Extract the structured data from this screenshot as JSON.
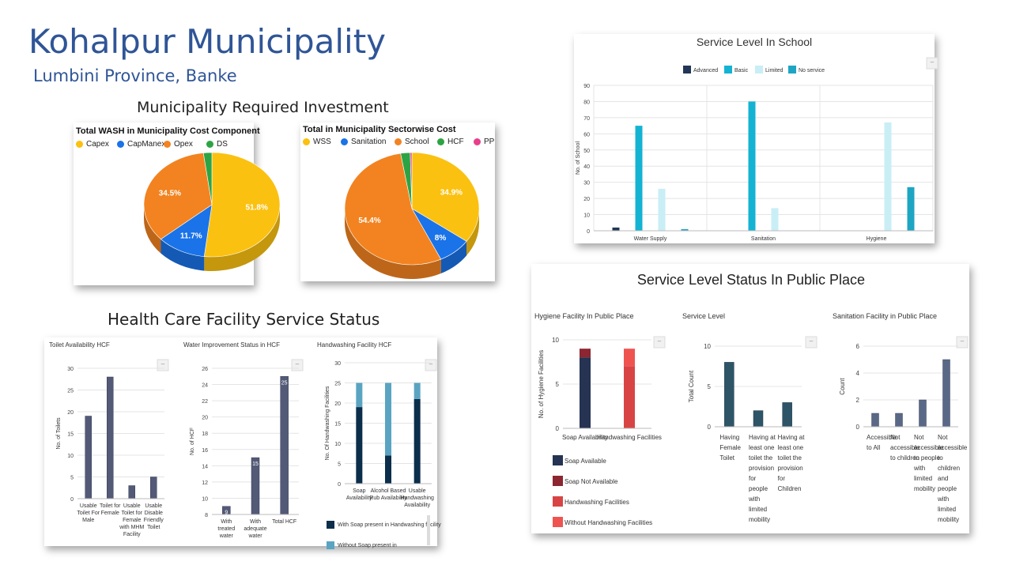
{
  "header": {
    "title": "Kohalpur Municipality",
    "subtitle": "Lumbini Province, Banke",
    "investment_title": "Municipality Required Investment",
    "hcf_title": "Health Care Facility Service Status"
  },
  "chart_data": [
    {
      "id": "wash_cost",
      "type": "pie",
      "title": "Total WASH in Municipality Cost Component",
      "labels": [
        "Capex",
        "CapManex",
        "Opex",
        "DS"
      ],
      "values": [
        51.8,
        11.7,
        34.5,
        2.0
      ],
      "data_labels": [
        "51.8%",
        "11.7%",
        "34.5%",
        ""
      ],
      "colors": [
        "#fbc111",
        "#1a73e8",
        "#f28320",
        "#2da444"
      ]
    },
    {
      "id": "sector_cost",
      "type": "pie",
      "title": "Total in Municipality Sectorwise Cost",
      "labels": [
        "WSS",
        "Sanitation",
        "School",
        "HCF",
        "PP"
      ],
      "values": [
        34.9,
        8.0,
        54.4,
        2.3,
        0.4
      ],
      "data_labels": [
        "34.9%",
        "8%",
        "54.4%",
        "",
        ""
      ],
      "colors": [
        "#fbc111",
        "#1a73e8",
        "#f28320",
        "#2da444",
        "#e83e8c"
      ]
    },
    {
      "id": "school",
      "type": "bar",
      "title": "Service Level In School",
      "categories": [
        "Water Supply",
        "Sanitation",
        "Hygiene"
      ],
      "series": [
        {
          "name": "Advanced",
          "values": [
            2,
            0,
            0
          ],
          "color": "#243657"
        },
        {
          "name": "Basic",
          "values": [
            65,
            80,
            0
          ],
          "color": "#14b3d3"
        },
        {
          "name": "Limited",
          "values": [
            26,
            14,
            67
          ],
          "color": "#c9eef6"
        },
        {
          "name": "No service",
          "values": [
            1,
            0,
            27
          ],
          "color": "#1ea5c3"
        }
      ],
      "ylabel": "No. of School",
      "ylim": [
        0,
        90
      ],
      "yticks": [
        "0",
        "10",
        "20",
        "30",
        "40",
        "50",
        "60",
        "70",
        "80",
        "90"
      ]
    },
    {
      "id": "public_place",
      "panel_title": "Service Level Status In Public Place",
      "charts": [
        {
          "id": "hygiene_pp",
          "type": "bar",
          "stacked": true,
          "title": "Hygiene Facility In Public Place",
          "categories": [
            "Soap Availability",
            "Handwashing Facilities"
          ],
          "series": [
            {
              "name": "Soap Available",
              "values": [
                8,
                0
              ],
              "color": "#263352"
            },
            {
              "name": "Soap Not Available",
              "values": [
                1,
                0
              ],
              "color": "#8c2631"
            },
            {
              "name": "Handwashing Facilities",
              "values": [
                0,
                7
              ],
              "color": "#d84444"
            },
            {
              "name": "Without Handwashing Facilities",
              "values": [
                0,
                2
              ],
              "color": "#ef5350"
            }
          ],
          "ylabel": "No. of Hygiene Facilities",
          "ylim": [
            0,
            10
          ],
          "yticks": [
            "0",
            "5",
            "10"
          ]
        },
        {
          "id": "service_level_pp",
          "type": "bar",
          "title": "Service Level",
          "categories": [
            [
              "Having",
              "Female",
              "Toilet"
            ],
            [
              "Having at",
              "least one",
              "toilet the",
              "provision",
              "for",
              "people",
              "with",
              "limited",
              "mobility"
            ],
            [
              "Having at",
              "least one",
              "toilet the",
              "provision",
              "for",
              "Children"
            ]
          ],
          "values": [
            8,
            2,
            3
          ],
          "color": "#2e5468",
          "ylabel": "Total Count",
          "ylim": [
            0,
            10
          ],
          "yticks": [
            "0",
            "5",
            "10"
          ]
        },
        {
          "id": "sanitation_pp",
          "type": "bar",
          "title": "Sanitation Facility in Public Place",
          "categories": [
            [
              "Accessible",
              "to All"
            ],
            [
              "Not",
              "accessible",
              "to children"
            ],
            [
              "Not",
              "accessible",
              "to people",
              "with",
              "limited",
              "mobility"
            ],
            [
              "Not",
              "accessible",
              "to",
              "children",
              "and",
              "people",
              "with",
              "limited",
              "mobility"
            ]
          ],
          "values": [
            1,
            1,
            2,
            5
          ],
          "color": "#5a6888",
          "ylabel": "Count",
          "ylim": [
            0,
            6
          ],
          "yticks": [
            "0",
            "2",
            "4",
            "6"
          ]
        }
      ]
    },
    {
      "id": "hcf",
      "charts": [
        {
          "id": "toilet_hcf",
          "type": "bar",
          "title": "Toilet Availability HCF",
          "categories": [
            [
              "Usable",
              "Toilet For",
              "Male"
            ],
            [
              "Toilet for",
              "Female"
            ],
            [
              "Usable",
              "Toilet for",
              "Female",
              "with MHM",
              "Facility"
            ],
            [
              "Usable",
              "Disable",
              "Friendly",
              "Toilet"
            ]
          ],
          "values": [
            19,
            28,
            3,
            5
          ],
          "color": "#535a78",
          "ylabel": "No. of Toilets",
          "ylim": [
            0,
            30
          ],
          "yticks": [
            "0",
            "5",
            "10",
            "15",
            "20",
            "25",
            "30"
          ]
        },
        {
          "id": "water_hcf",
          "type": "bar",
          "title": "Water Improvement Status in HCF",
          "categories": [
            [
              "With",
              "treated",
              "water"
            ],
            [
              "With",
              "adequate",
              "water"
            ],
            [
              "Total HCF"
            ]
          ],
          "values": [
            9,
            15,
            25
          ],
          "data_labels": [
            "9",
            "15",
            "25"
          ],
          "color": "#535a78",
          "ylabel": "No. of HCF",
          "ylim": [
            8,
            26
          ],
          "yticks": [
            "8",
            "10",
            "12",
            "14",
            "16",
            "18",
            "20",
            "22",
            "24",
            "26"
          ]
        },
        {
          "id": "handwash_hcf",
          "type": "bar",
          "stacked": true,
          "title": "Handwashing Facility HCF",
          "categories": [
            [
              "Soap",
              "Availability"
            ],
            [
              "Alcohol Based",
              "Rub Availability"
            ],
            [
              "Usable",
              "Handwashing",
              "Availability"
            ]
          ],
          "series": [
            {
              "name": "With Soap present in Handwashing facility",
              "values": [
                19,
                7,
                21
              ],
              "color": "#0b2e4b"
            },
            {
              "name": "Without Soap present in",
              "values": [
                6,
                18,
                4
              ],
              "color": "#5aa4c2"
            }
          ],
          "legend_colors": [
            "#0b2e4b",
            "#5aa4c2"
          ],
          "ylabel": "No. Of Handwashing Facilities",
          "ylim": [
            0,
            30
          ],
          "yticks": [
            "0",
            "5",
            "10",
            "15",
            "20",
            "25",
            "30"
          ]
        }
      ]
    }
  ]
}
